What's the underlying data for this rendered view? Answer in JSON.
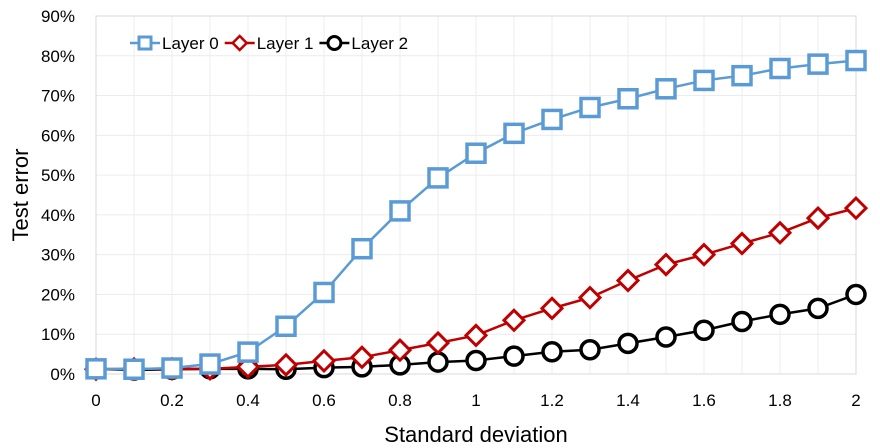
{
  "chart_data": {
    "type": "line",
    "title": "",
    "xlabel": "Standard deviation",
    "ylabel": "Test error",
    "xlim": [
      0,
      2
    ],
    "ylim": [
      0,
      90
    ],
    "x_ticks": [
      "0",
      "0.2",
      "0.4",
      "0.6",
      "0.8",
      "1",
      "1.2",
      "1.4",
      "1.6",
      "1.8",
      "2"
    ],
    "y_ticks": [
      "0%",
      "10%",
      "20%",
      "30%",
      "40%",
      "50%",
      "60%",
      "70%",
      "80%",
      "90%"
    ],
    "grid": true,
    "legend_position": "top-left",
    "x": [
      0,
      0.1,
      0.2,
      0.3,
      0.4,
      0.5,
      0.6,
      0.7,
      0.8,
      0.9,
      1.0,
      1.1,
      1.2,
      1.3,
      1.4,
      1.5,
      1.6,
      1.7,
      1.8,
      1.9,
      2.0
    ],
    "series": [
      {
        "name": "Layer 0",
        "color": "#5B9BD5",
        "marker": "square",
        "values": [
          1.3,
          1.2,
          1.5,
          2.5,
          5.5,
          12,
          20.5,
          31.5,
          41,
          49.3,
          55.5,
          60.5,
          64,
          67,
          69.2,
          71.7,
          73.8,
          75,
          76.8,
          77.9,
          78.8
        ]
      },
      {
        "name": "Layer 1",
        "color": "#C00000",
        "marker": "diamond",
        "values": [
          1.2,
          1.3,
          1.3,
          1.3,
          1.8,
          2.3,
          3.3,
          4.2,
          6,
          7.8,
          9.7,
          13.5,
          16.5,
          19.2,
          23.5,
          27.5,
          30,
          32.8,
          35.5,
          39.2,
          41.7
        ]
      },
      {
        "name": "Layer 2",
        "color": "#000000",
        "marker": "circle",
        "values": [
          1.3,
          1.0,
          1.2,
          1.3,
          1.3,
          1.2,
          1.6,
          1.8,
          2.3,
          3.0,
          3.4,
          4.5,
          5.6,
          6.1,
          7.7,
          9.3,
          11,
          13.2,
          15,
          16.5,
          20
        ]
      }
    ]
  }
}
